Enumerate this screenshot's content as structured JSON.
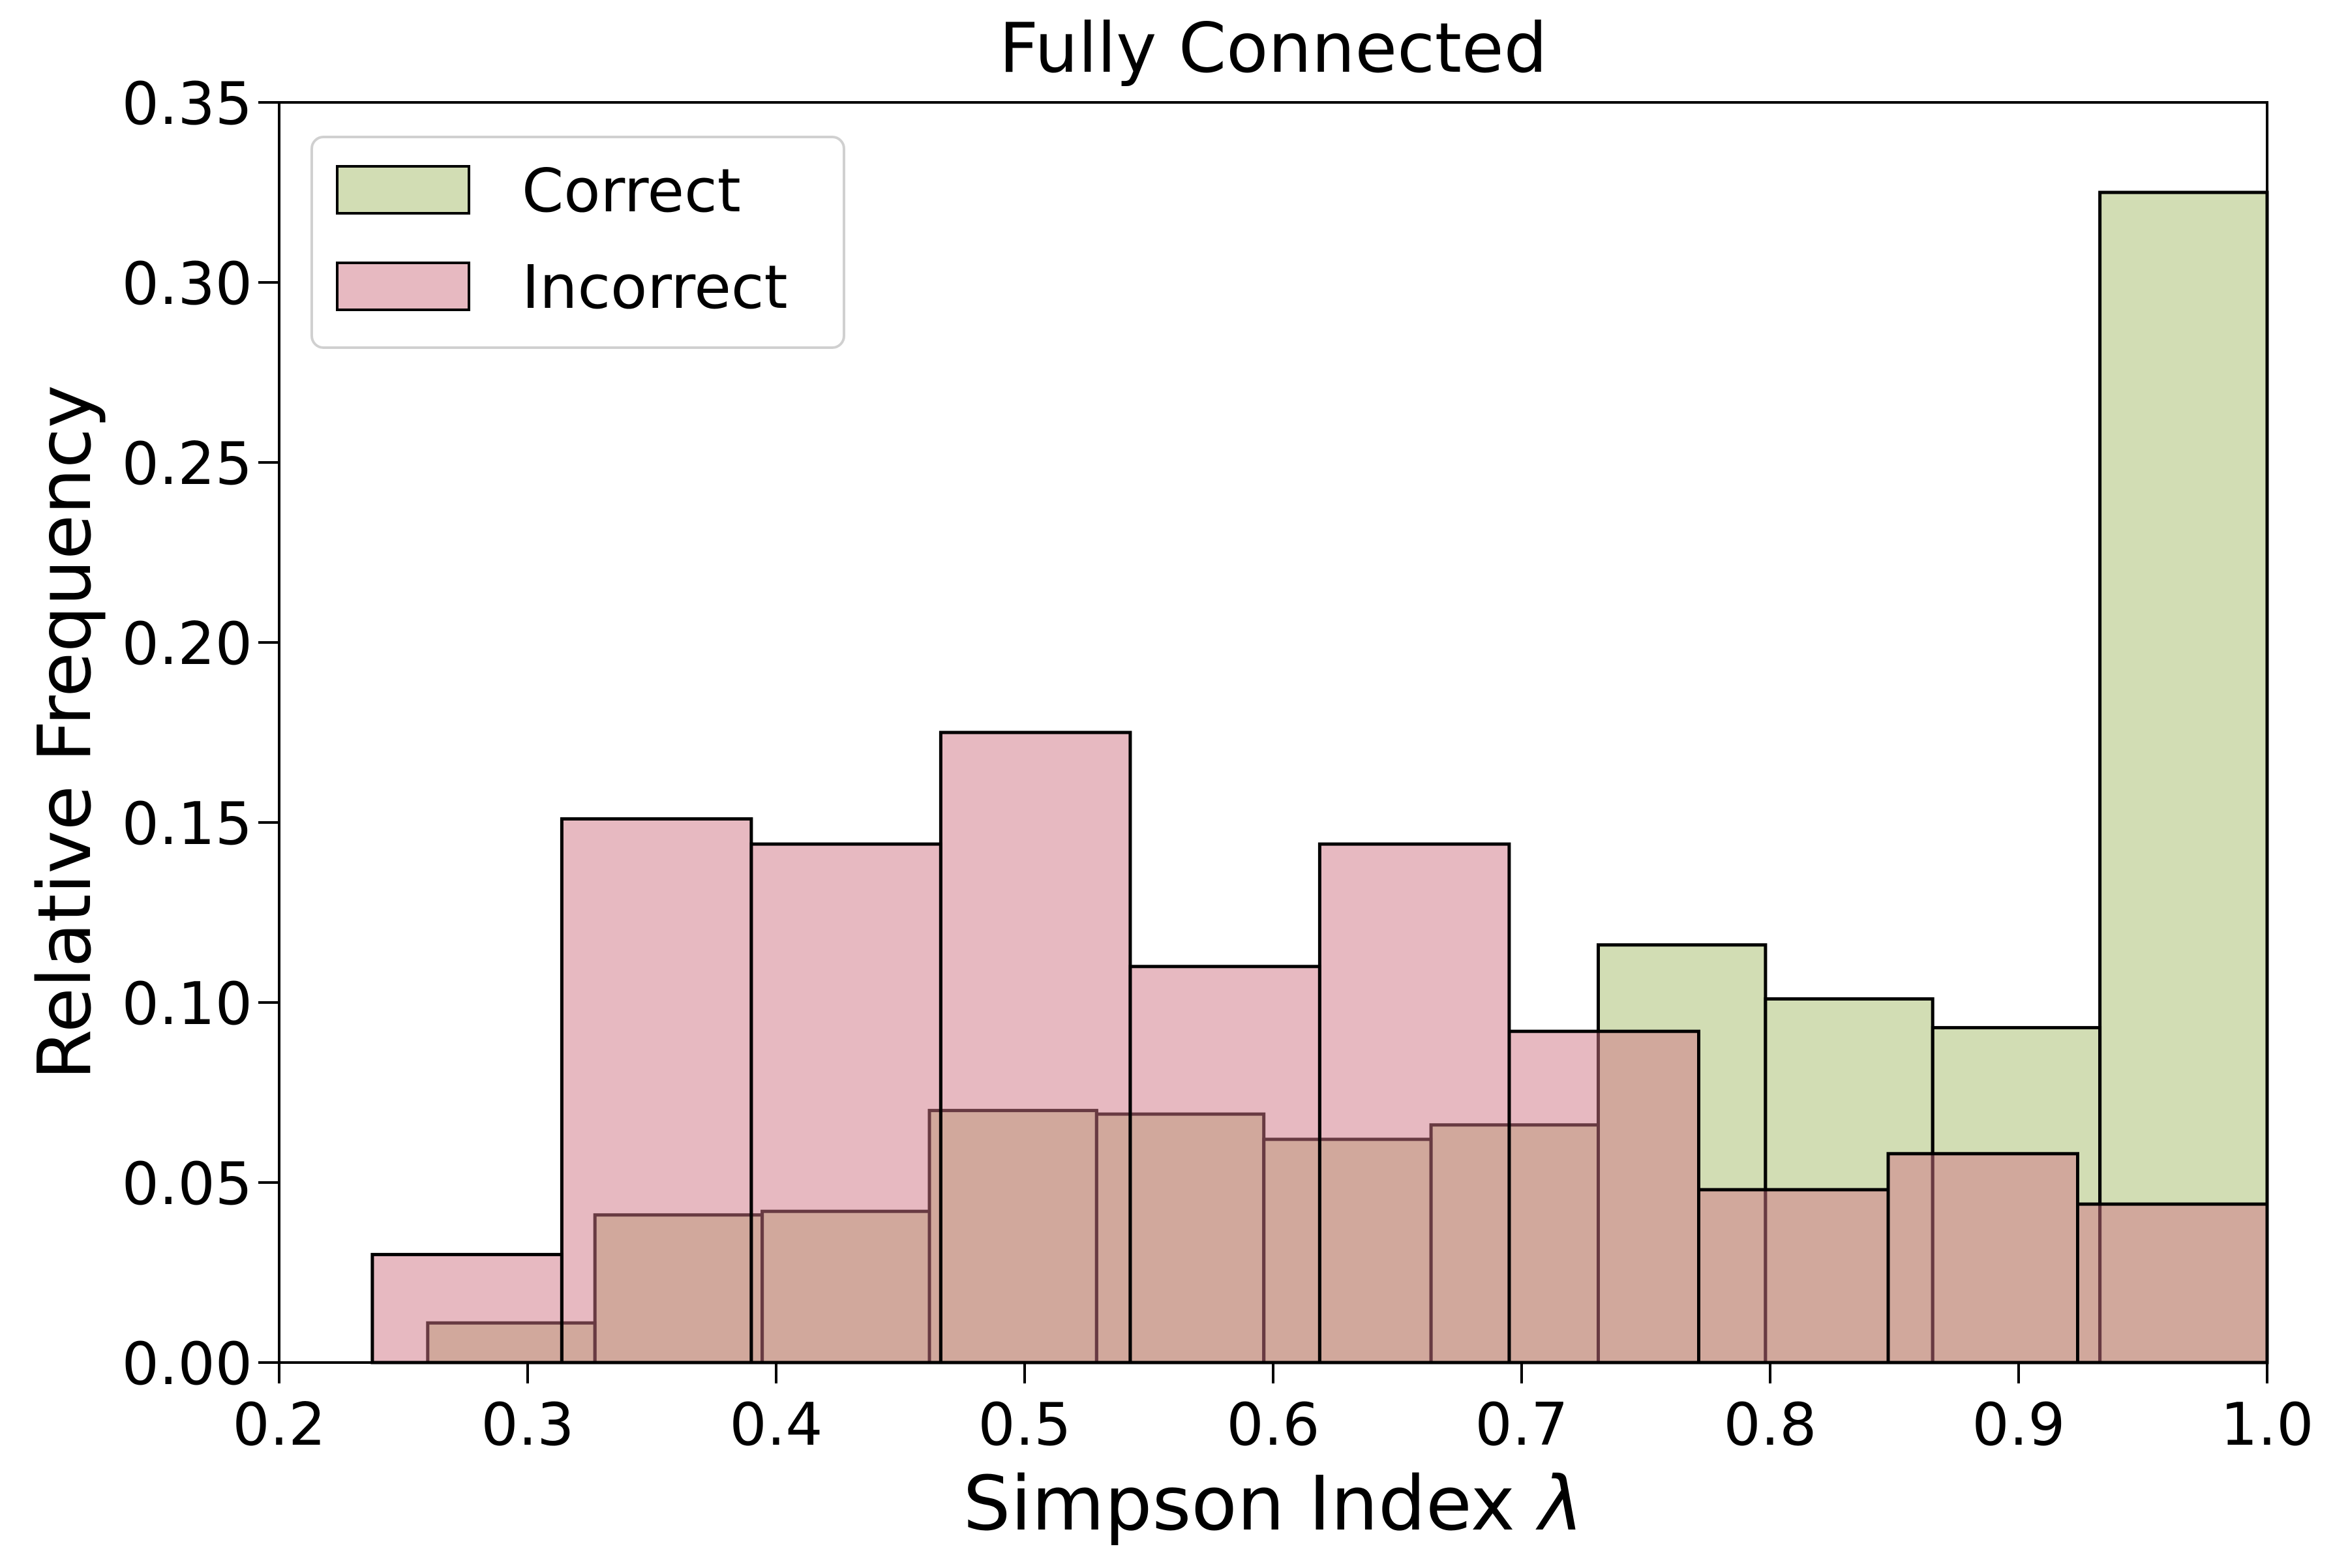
{
  "chart_data": {
    "type": "bar",
    "subtype": "overlaid-histogram",
    "title": "Fully Connected",
    "xlabel": "Simpson Index λ",
    "xlabel_text": "Simpson Index ",
    "xlabel_symbol": "λ",
    "ylabel": "Relative Frequency",
    "xlim": [
      0.2,
      1.0
    ],
    "ylim": [
      0.0,
      0.35
    ],
    "x_ticks": [
      0.2,
      0.3,
      0.4,
      0.5,
      0.6,
      0.7,
      0.8,
      0.9,
      1.0
    ],
    "x_tick_labels": [
      "0.2",
      "0.3",
      "0.4",
      "0.5",
      "0.6",
      "0.7",
      "0.8",
      "0.9",
      "1.0"
    ],
    "y_ticks": [
      0.0,
      0.05,
      0.1,
      0.15,
      0.2,
      0.25,
      0.3,
      0.35
    ],
    "y_tick_labels": [
      "0.00",
      "0.05",
      "0.10",
      "0.15",
      "0.20",
      "0.25",
      "0.30",
      "0.35"
    ],
    "grid": false,
    "legend_position": "upper left",
    "series": [
      {
        "name": "Correct",
        "color": "#a5bb6a",
        "fill_opacity": 0.5,
        "edge_color": "#000000",
        "bin_start": 0.2598,
        "bin_width": 0.06729,
        "values": [
          0.011,
          0.041,
          0.042,
          0.07,
          0.069,
          0.062,
          0.066,
          0.116,
          0.101,
          0.093,
          0.325
        ]
      },
      {
        "name": "Incorrect",
        "color": "#cf7383",
        "fill_opacity": 0.5,
        "edge_color": "#000000",
        "bin_start": 0.2375,
        "bin_width": 0.07625,
        "values": [
          0.03,
          0.151,
          0.144,
          0.175,
          0.11,
          0.144,
          0.092,
          0.048,
          0.058,
          0.044
        ]
      }
    ]
  },
  "colors": {
    "background": "#ffffff",
    "axis": "#000000",
    "legend_border": "#d0d0d0",
    "text": "#000000"
  }
}
